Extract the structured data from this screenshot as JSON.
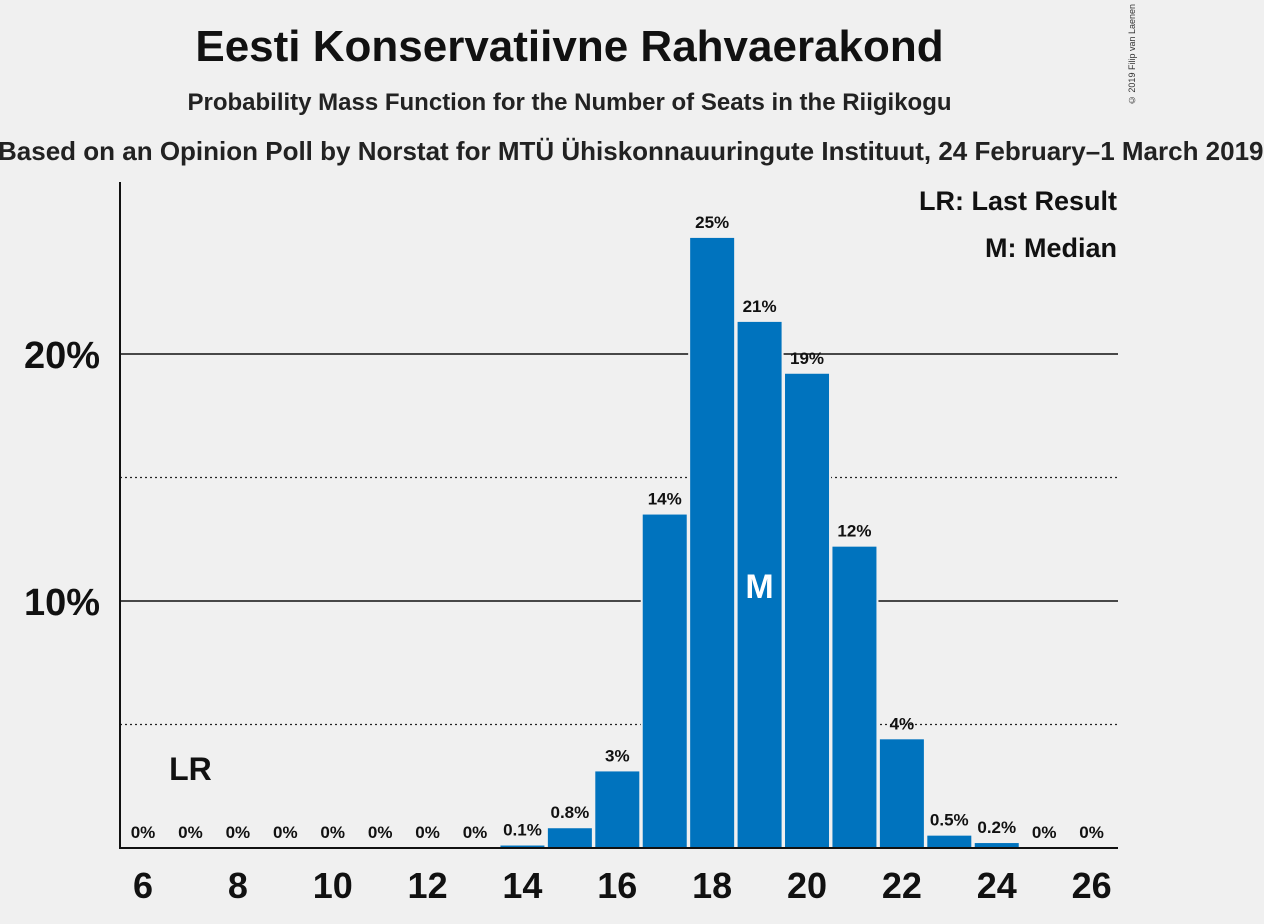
{
  "chart_data": {
    "type": "bar",
    "title": "Eesti Konservatiivne Rahvaerakond",
    "subtitle": "Probability Mass Function for the Number of Seats in the Riigikogu",
    "source": "Based on an Opinion Poll by Norstat for MTÜ Ühiskonnauuringute Instituut, 24 February–1 March 2019",
    "copyright": "© 2019 Filip van Laenen",
    "categories": [
      6,
      7,
      8,
      9,
      10,
      11,
      12,
      13,
      14,
      15,
      16,
      17,
      18,
      19,
      20,
      21,
      22,
      23,
      24,
      25,
      26
    ],
    "values": [
      0,
      0,
      0,
      0,
      0,
      0,
      0,
      0,
      0.1,
      0.8,
      3.1,
      13.5,
      24.7,
      21.3,
      19.2,
      12.2,
      4.4,
      0.5,
      0.2,
      0,
      0
    ],
    "data_labels": [
      "0%",
      "0%",
      "0%",
      "0%",
      "0%",
      "0%",
      "0%",
      "0%",
      "0.1%",
      "0.8%",
      "3%",
      "14%",
      "25%",
      "21%",
      "19%",
      "12%",
      "4%",
      "0.5%",
      "0.2%",
      "0%",
      "0%"
    ],
    "x_ticks": [
      6,
      8,
      10,
      12,
      14,
      16,
      18,
      20,
      22,
      24,
      26
    ],
    "y_ticks": [
      {
        "value": 10,
        "label": "10%"
      },
      {
        "value": 20,
        "label": "20%"
      }
    ],
    "y_minor_gridlines": [
      5,
      15
    ],
    "ylim": [
      0,
      26.8
    ],
    "xlim": [
      5.5,
      26.5
    ],
    "last_result": {
      "seat": 7,
      "label": "LR"
    },
    "median": {
      "seat": 19,
      "label": "M"
    },
    "legend": {
      "position": "top-right",
      "items": [
        "LR: Last Result",
        "M: Median"
      ]
    },
    "colors": {
      "bar": "#0073be",
      "background": "#f0f0f0",
      "axis": "#111111",
      "median_label": "#ffffff"
    }
  }
}
